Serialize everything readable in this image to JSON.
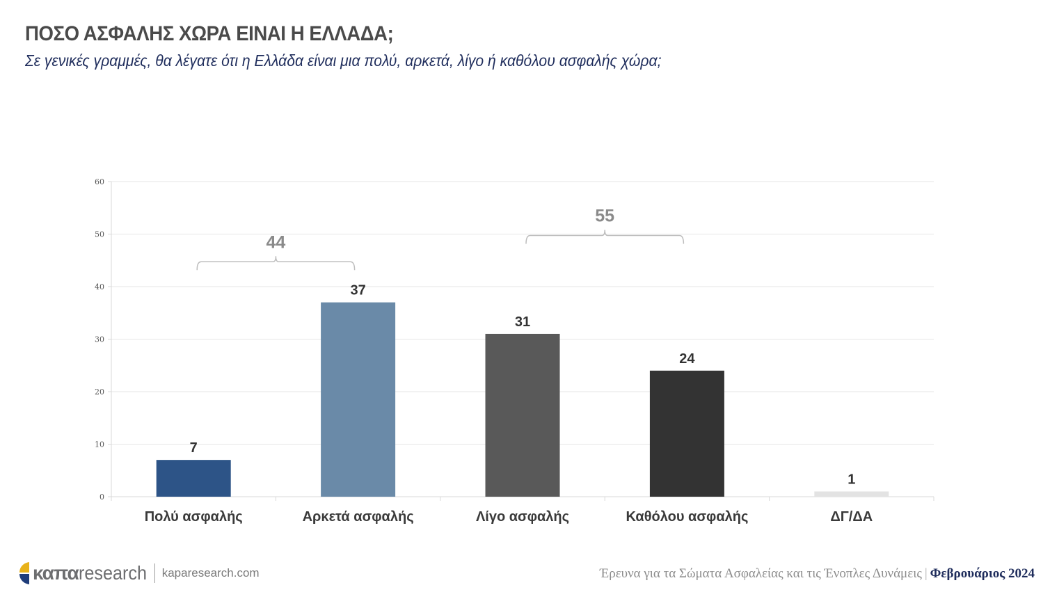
{
  "header": {
    "title": "ΠΟΣΟ ΑΣΦΑΛΗΣ ΧΩΡΑ ΕΙΝΑΙ Η ΕΛΛΑΔΑ;",
    "subtitle": "Σε γενικές γραμμές, θα λέγατε ότι η Ελλάδα είναι μια πολύ, αρκετά, λίγο ή καθόλου ασφαλής χώρα;"
  },
  "chart_data": {
    "type": "bar",
    "title": "ΠΟΣΟ ΑΣΦΑΛΗΣ ΧΩΡΑ ΕΙΝΑΙ Η ΕΛΛΑΔΑ;",
    "subtitle": "Σε γενικές γραμμές, θα λέγατε ότι η Ελλάδα είναι μια πολύ, αρκετά, λίγο ή καθόλου ασφαλής χώρα;",
    "categories": [
      "Πολύ ασφαλής",
      "Αρκετά ασφαλής",
      "Λίγο ασφαλής",
      "Καθόλου ασφαλής",
      "ΔΓ/ΔΑ"
    ],
    "values": [
      7,
      37,
      31,
      24,
      1
    ],
    "colors": [
      "#2d5487",
      "#6a8aa8",
      "#595959",
      "#333333",
      "#e3e3e3"
    ],
    "data_labels": [
      "7",
      "37",
      "31",
      "24",
      "1"
    ],
    "xlabel": "",
    "ylabel": "",
    "ylim": [
      0,
      60
    ],
    "yticks": [
      0,
      10,
      20,
      30,
      40,
      50,
      60
    ],
    "grid": true,
    "legend": "none",
    "annotations": [
      {
        "type": "bracket",
        "from_category": 0,
        "to_category": 1,
        "label": "44",
        "level": 45
      },
      {
        "type": "bracket",
        "from_category": 2,
        "to_category": 3,
        "label": "55",
        "level": 50
      }
    ]
  },
  "footer": {
    "brand_bold": "καπα",
    "brand_light": "research",
    "website": "kaparesearch.com",
    "survey": "Έρευνα για τα Σώματα Ασφαλείας και τις Ένοπλες Δυνάμεις",
    "separator": "|",
    "date": "Φεβρουάριος 2024",
    "logo_colors": [
      "#e8b21a",
      "#1f3d7a"
    ]
  }
}
